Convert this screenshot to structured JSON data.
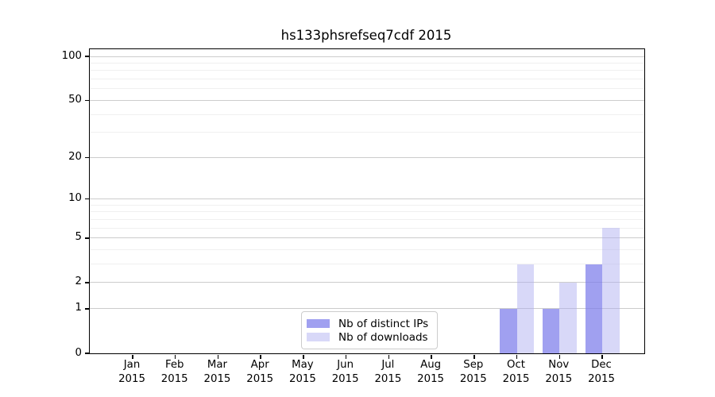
{
  "chart_data": {
    "type": "bar",
    "title": "hs133phsrefseq7cdf 2015",
    "scale": "log1p",
    "categories": [
      "Jan",
      "Feb",
      "Mar",
      "Apr",
      "May",
      "Jun",
      "Jul",
      "Aug",
      "Sep",
      "Oct",
      "Nov",
      "Dec"
    ],
    "category_year": "2015",
    "series": [
      {
        "name": "Nb of distinct IPs",
        "color": "#a0a0f0",
        "color_rgba": "rgba(123,123,234,0.72)",
        "values": [
          0,
          0,
          0,
          0,
          0,
          0,
          0,
          0,
          0,
          1,
          1,
          3
        ]
      },
      {
        "name": "Nb of downloads",
        "color": "#d8d8f8",
        "color_rgba": "rgba(174,174,240,0.48)",
        "values": [
          0,
          0,
          0,
          0,
          0,
          0,
          0,
          0,
          0,
          3,
          2,
          6
        ]
      }
    ],
    "yticks": [
      0,
      1,
      2,
      5,
      10,
      20,
      50,
      100
    ],
    "gridlines": [
      1,
      2,
      3,
      4,
      5,
      6,
      7,
      8,
      9,
      10,
      20,
      30,
      40,
      50,
      60,
      70,
      80,
      90,
      100
    ],
    "major_gridlines": [
      1,
      2,
      5,
      10,
      20,
      50,
      100
    ],
    "ylim": [
      0,
      112
    ],
    "grid": true,
    "legend_position": "bottom-center",
    "colors": {
      "major_grid": "#cccccc",
      "minor_grid": "#f0f0f0",
      "axis": "#000000",
      "background": "#ffffff"
    }
  }
}
